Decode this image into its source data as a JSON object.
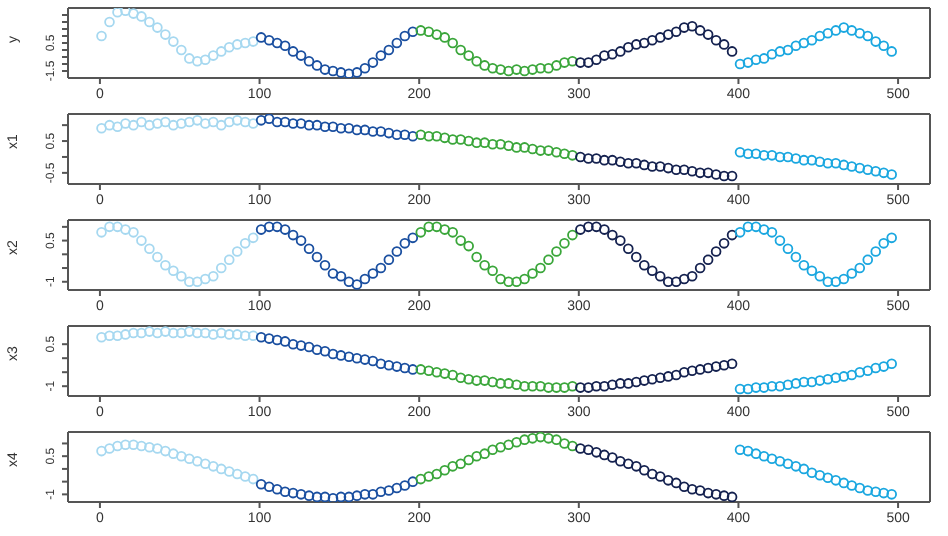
{
  "chart_data": [
    {
      "type": "scatter",
      "ylabel": "y",
      "xlim": [
        -20,
        520
      ],
      "xticks": [
        0,
        100,
        200,
        300,
        400,
        500
      ],
      "ylim": [
        -2.0,
        3.0
      ],
      "yticks": [
        -1.5,
        {
          "value": -1,
          "label": null
        },
        {
          "value": -0.5,
          "label": null
        },
        {
          "value": 0,
          "label": null
        },
        0.5,
        {
          "value": 1,
          "label": null
        },
        {
          "value": 1.5,
          "label": null
        },
        {
          "value": 2,
          "label": null
        },
        {
          "value": 2.5,
          "label": null
        }
      ],
      "marker": "circle",
      "grid": false,
      "series": [
        {
          "color": "#a6d8f0",
          "x": [
            1,
            6,
            11,
            16,
            21,
            26,
            31,
            36,
            41,
            46,
            51,
            56,
            61,
            66,
            71,
            76,
            81,
            86,
            91,
            96
          ],
          "values": [
            1.0,
            2.0,
            2.7,
            2.8,
            2.6,
            2.4,
            2.0,
            1.6,
            1.1,
            0.6,
            0.0,
            -0.6,
            -0.8,
            -0.7,
            -0.4,
            -0.1,
            0.2,
            0.4,
            0.5,
            0.6
          ]
        },
        {
          "color": "#1a4fa0",
          "x": [
            101,
            106,
            111,
            116,
            121,
            126,
            131,
            136,
            141,
            146,
            151,
            156,
            161,
            166,
            171,
            176,
            181,
            186,
            191,
            196
          ],
          "values": [
            0.9,
            0.7,
            0.5,
            0.3,
            -0.1,
            -0.4,
            -0.8,
            -1.1,
            -1.4,
            -1.5,
            -1.6,
            -1.7,
            -1.6,
            -1.3,
            -0.9,
            -0.4,
            0.0,
            0.5,
            1.0,
            1.3
          ]
        },
        {
          "color": "#3aa63a",
          "x": [
            201,
            206,
            211,
            216,
            221,
            226,
            231,
            236,
            241,
            246,
            251,
            256,
            261,
            266,
            271,
            276,
            281,
            286,
            291,
            296
          ],
          "values": [
            1.4,
            1.3,
            1.1,
            0.9,
            0.5,
            0.0,
            -0.4,
            -0.8,
            -1.1,
            -1.3,
            -1.4,
            -1.5,
            -1.4,
            -1.5,
            -1.4,
            -1.3,
            -1.3,
            -1.1,
            -0.9,
            -0.8
          ]
        },
        {
          "color": "#14214f",
          "x": [
            301,
            306,
            311,
            316,
            321,
            326,
            331,
            336,
            341,
            346,
            351,
            356,
            361,
            366,
            371,
            376,
            381,
            386,
            391,
            396
          ],
          "values": [
            -0.9,
            -0.9,
            -0.7,
            -0.4,
            -0.3,
            -0.1,
            0.2,
            0.4,
            0.5,
            0.7,
            0.9,
            1.1,
            1.3,
            1.6,
            1.7,
            1.4,
            1.1,
            0.7,
            0.4,
            -0.1
          ]
        },
        {
          "color": "#1aa7e0",
          "x": [
            401,
            406,
            411,
            416,
            421,
            426,
            431,
            436,
            441,
            446,
            451,
            456,
            461,
            466,
            471,
            476,
            481,
            486,
            491,
            496
          ],
          "values": [
            -1.0,
            -0.9,
            -0.7,
            -0.6,
            -0.3,
            -0.1,
            0.0,
            0.3,
            0.5,
            0.7,
            1.0,
            1.2,
            1.4,
            1.6,
            1.4,
            1.2,
            1.0,
            0.6,
            0.3,
            -0.1
          ]
        }
      ]
    },
    {
      "type": "scatter",
      "ylabel": "x1",
      "xlim": [
        -20,
        520
      ],
      "xticks": [
        0,
        100,
        200,
        300,
        400,
        500
      ],
      "ylim": [
        -0.85,
        1.35
      ],
      "yticks": [
        -0.5,
        {
          "value": 0,
          "label": null
        },
        0.5,
        {
          "value": 1,
          "label": null
        }
      ],
      "marker": "circle",
      "grid": false,
      "series": [
        {
          "color": "#a6d8f0",
          "x": [
            1,
            6,
            11,
            16,
            21,
            26,
            31,
            36,
            41,
            46,
            51,
            56,
            61,
            66,
            71,
            76,
            81,
            86,
            91,
            96
          ],
          "values": [
            0.9,
            1.0,
            0.95,
            1.05,
            1.0,
            1.1,
            1.0,
            1.05,
            1.1,
            1.0,
            1.05,
            1.1,
            1.15,
            1.05,
            1.1,
            1.0,
            1.1,
            1.15,
            1.1,
            1.05
          ]
        },
        {
          "color": "#1a4fa0",
          "x": [
            101,
            106,
            111,
            116,
            121,
            126,
            131,
            136,
            141,
            146,
            151,
            156,
            161,
            166,
            171,
            176,
            181,
            186,
            191,
            196
          ],
          "values": [
            1.15,
            1.2,
            1.1,
            1.1,
            1.05,
            1.05,
            1.0,
            1.0,
            0.95,
            0.95,
            0.9,
            0.9,
            0.85,
            0.85,
            0.8,
            0.8,
            0.75,
            0.7,
            0.7,
            0.65
          ]
        },
        {
          "color": "#3aa63a",
          "x": [
            201,
            206,
            211,
            216,
            221,
            226,
            231,
            236,
            241,
            246,
            251,
            256,
            261,
            266,
            271,
            276,
            281,
            286,
            291,
            296
          ],
          "values": [
            0.7,
            0.65,
            0.65,
            0.6,
            0.55,
            0.55,
            0.5,
            0.45,
            0.45,
            0.4,
            0.4,
            0.35,
            0.3,
            0.3,
            0.25,
            0.2,
            0.2,
            0.15,
            0.1,
            0.05
          ]
        },
        {
          "color": "#14214f",
          "x": [
            301,
            306,
            311,
            316,
            321,
            326,
            331,
            336,
            341,
            346,
            351,
            356,
            361,
            366,
            371,
            376,
            381,
            386,
            391,
            396
          ],
          "values": [
            0.0,
            -0.05,
            -0.05,
            -0.1,
            -0.1,
            -0.15,
            -0.2,
            -0.2,
            -0.25,
            -0.3,
            -0.3,
            -0.35,
            -0.4,
            -0.4,
            -0.45,
            -0.5,
            -0.5,
            -0.55,
            -0.6,
            -0.6
          ]
        },
        {
          "color": "#1aa7e0",
          "x": [
            401,
            406,
            411,
            416,
            421,
            426,
            431,
            436,
            441,
            446,
            451,
            456,
            461,
            466,
            471,
            476,
            481,
            486,
            491,
            496
          ],
          "values": [
            0.15,
            0.1,
            0.1,
            0.05,
            0.05,
            0.0,
            0.0,
            -0.05,
            -0.1,
            -0.1,
            -0.15,
            -0.2,
            -0.2,
            -0.25,
            -0.3,
            -0.35,
            -0.4,
            -0.45,
            -0.5,
            -0.55
          ]
        }
      ]
    },
    {
      "type": "scatter",
      "ylabel": "x2",
      "xlim": [
        -20,
        520
      ],
      "xticks": [
        0,
        100,
        200,
        300,
        400,
        500
      ],
      "ylim": [
        -1.3,
        1.25
      ],
      "yticks": [
        -1.0,
        {
          "value": -0.5,
          "label": null
        },
        {
          "value": 0,
          "label": null
        },
        0.5,
        {
          "value": 1,
          "label": null
        }
      ],
      "marker": "circle",
      "grid": false,
      "series": [
        {
          "color": "#a6d8f0",
          "x": [
            1,
            6,
            11,
            16,
            21,
            26,
            31,
            36,
            41,
            46,
            51,
            56,
            61,
            66,
            71,
            76,
            81,
            86,
            91,
            96
          ],
          "values": [
            0.8,
            1.0,
            1.0,
            0.9,
            0.8,
            0.5,
            0.2,
            -0.1,
            -0.4,
            -0.6,
            -0.8,
            -1.0,
            -1.0,
            -0.9,
            -0.8,
            -0.5,
            -0.2,
            0.1,
            0.4,
            0.6
          ]
        },
        {
          "color": "#1a4fa0",
          "x": [
            101,
            106,
            111,
            116,
            121,
            126,
            131,
            136,
            141,
            146,
            151,
            156,
            161,
            166,
            171,
            176,
            181,
            186,
            191,
            196
          ],
          "values": [
            0.9,
            1.0,
            1.0,
            0.9,
            0.7,
            0.5,
            0.2,
            -0.1,
            -0.4,
            -0.7,
            -0.8,
            -1.0,
            -1.1,
            -0.9,
            -0.7,
            -0.5,
            -0.2,
            0.1,
            0.4,
            0.6
          ]
        },
        {
          "color": "#3aa63a",
          "x": [
            201,
            206,
            211,
            216,
            221,
            226,
            231,
            236,
            241,
            246,
            251,
            256,
            261,
            266,
            271,
            276,
            281,
            286,
            291,
            296
          ],
          "values": [
            0.8,
            1.0,
            1.0,
            0.9,
            0.8,
            0.5,
            0.3,
            -0.1,
            -0.4,
            -0.6,
            -0.9,
            -1.0,
            -1.0,
            -0.9,
            -0.7,
            -0.5,
            -0.2,
            0.1,
            0.4,
            0.7
          ]
        },
        {
          "color": "#14214f",
          "x": [
            301,
            306,
            311,
            316,
            321,
            326,
            331,
            336,
            341,
            346,
            351,
            356,
            361,
            366,
            371,
            376,
            381,
            386,
            391,
            396
          ],
          "values": [
            0.9,
            1.0,
            1.0,
            0.9,
            0.7,
            0.5,
            0.2,
            -0.1,
            -0.4,
            -0.6,
            -0.8,
            -1.0,
            -1.0,
            -0.9,
            -0.8,
            -0.5,
            -0.2,
            0.1,
            0.4,
            0.7
          ]
        },
        {
          "color": "#1aa7e0",
          "x": [
            401,
            406,
            411,
            416,
            421,
            426,
            431,
            436,
            441,
            446,
            451,
            456,
            461,
            466,
            471,
            476,
            481,
            486,
            491,
            496
          ],
          "values": [
            0.8,
            1.0,
            1.0,
            0.9,
            0.8,
            0.5,
            0.2,
            -0.1,
            -0.4,
            -0.6,
            -0.8,
            -1.0,
            -1.0,
            -0.9,
            -0.7,
            -0.5,
            -0.2,
            0.1,
            0.4,
            0.6
          ]
        }
      ]
    },
    {
      "type": "scatter",
      "ylabel": "x3",
      "xlim": [
        -20,
        520
      ],
      "xticks": [
        0,
        100,
        200,
        300,
        400,
        500
      ],
      "ylim": [
        -1.35,
        1.15
      ],
      "yticks": [
        -1.0,
        {
          "value": -0.5,
          "label": null
        },
        {
          "value": 0,
          "label": null
        },
        0.5
      ],
      "marker": "circle",
      "grid": false,
      "series": [
        {
          "color": "#a6d8f0",
          "x": [
            1,
            6,
            11,
            16,
            21,
            26,
            31,
            36,
            41,
            46,
            51,
            56,
            61,
            66,
            71,
            76,
            81,
            86,
            91,
            96
          ],
          "values": [
            0.75,
            0.8,
            0.8,
            0.85,
            0.9,
            0.9,
            0.95,
            0.9,
            0.95,
            0.9,
            0.9,
            0.95,
            0.9,
            0.9,
            0.85,
            0.9,
            0.85,
            0.85,
            0.8,
            0.8
          ]
        },
        {
          "color": "#1a4fa0",
          "x": [
            101,
            106,
            111,
            116,
            121,
            126,
            131,
            136,
            141,
            146,
            151,
            156,
            161,
            166,
            171,
            176,
            181,
            186,
            191,
            196
          ],
          "values": [
            0.75,
            0.7,
            0.65,
            0.6,
            0.5,
            0.45,
            0.4,
            0.3,
            0.25,
            0.15,
            0.1,
            0.05,
            0.0,
            -0.05,
            -0.1,
            -0.2,
            -0.25,
            -0.3,
            -0.35,
            -0.4
          ]
        },
        {
          "color": "#3aa63a",
          "x": [
            201,
            206,
            211,
            216,
            221,
            226,
            231,
            236,
            241,
            246,
            251,
            256,
            261,
            266,
            271,
            276,
            281,
            286,
            291,
            296
          ],
          "values": [
            -0.4,
            -0.45,
            -0.5,
            -0.55,
            -0.6,
            -0.7,
            -0.75,
            -0.8,
            -0.8,
            -0.85,
            -0.9,
            -0.9,
            -0.95,
            -1.0,
            -1.0,
            -1.0,
            -1.05,
            -1.05,
            -1.05,
            -1.0
          ]
        },
        {
          "color": "#14214f",
          "x": [
            301,
            306,
            311,
            316,
            321,
            326,
            331,
            336,
            341,
            346,
            351,
            356,
            361,
            366,
            371,
            376,
            381,
            386,
            391,
            396
          ],
          "values": [
            -1.05,
            -1.05,
            -1.0,
            -1.0,
            -0.95,
            -0.9,
            -0.9,
            -0.85,
            -0.8,
            -0.75,
            -0.7,
            -0.65,
            -0.6,
            -0.5,
            -0.45,
            -0.4,
            -0.35,
            -0.3,
            -0.25,
            -0.2
          ]
        },
        {
          "color": "#1aa7e0",
          "x": [
            401,
            406,
            411,
            416,
            421,
            426,
            431,
            436,
            441,
            446,
            451,
            456,
            461,
            466,
            471,
            476,
            481,
            486,
            491,
            496
          ],
          "values": [
            -1.1,
            -1.1,
            -1.05,
            -1.05,
            -1.0,
            -1.0,
            -0.95,
            -0.9,
            -0.85,
            -0.85,
            -0.8,
            -0.75,
            -0.7,
            -0.65,
            -0.6,
            -0.5,
            -0.45,
            -0.35,
            -0.3,
            -0.2
          ]
        }
      ]
    },
    {
      "type": "scatter",
      "ylabel": "x4",
      "xlim": [
        -20,
        520
      ],
      "xticks": [
        0,
        100,
        200,
        300,
        400,
        500
      ],
      "ylim": [
        -1.3,
        1.45
      ],
      "yticks": [
        -1.0,
        {
          "value": -0.5,
          "label": null
        },
        {
          "value": 0,
          "label": null
        },
        0.5,
        {
          "value": 1,
          "label": null
        }
      ],
      "marker": "circle",
      "grid": false,
      "series": [
        {
          "color": "#a6d8f0",
          "x": [
            1,
            6,
            11,
            16,
            21,
            26,
            31,
            36,
            41,
            46,
            51,
            56,
            61,
            66,
            71,
            76,
            81,
            86,
            91,
            96
          ],
          "values": [
            0.7,
            0.8,
            0.9,
            0.95,
            0.95,
            0.9,
            0.85,
            0.8,
            0.7,
            0.6,
            0.5,
            0.4,
            0.3,
            0.2,
            0.1,
            0.0,
            -0.1,
            -0.2,
            -0.3,
            -0.4
          ]
        },
        {
          "color": "#1a4fa0",
          "x": [
            101,
            106,
            111,
            116,
            121,
            126,
            131,
            136,
            141,
            146,
            151,
            156,
            161,
            166,
            171,
            176,
            181,
            186,
            191,
            196
          ],
          "values": [
            -0.6,
            -0.7,
            -0.8,
            -0.9,
            -0.95,
            -1.0,
            -1.05,
            -1.1,
            -1.1,
            -1.15,
            -1.1,
            -1.1,
            -1.05,
            -1.0,
            -1.0,
            -0.9,
            -0.85,
            -0.75,
            -0.65,
            -0.5
          ]
        },
        {
          "color": "#3aa63a",
          "x": [
            201,
            206,
            211,
            216,
            221,
            226,
            231,
            236,
            241,
            246,
            251,
            256,
            261,
            266,
            271,
            276,
            281,
            286,
            291,
            296
          ],
          "values": [
            -0.4,
            -0.3,
            -0.2,
            -0.05,
            0.1,
            0.2,
            0.35,
            0.5,
            0.6,
            0.75,
            0.85,
            0.95,
            1.05,
            1.15,
            1.2,
            1.25,
            1.2,
            1.15,
            1.0,
            0.9
          ]
        },
        {
          "color": "#14214f",
          "x": [
            301,
            306,
            311,
            316,
            321,
            326,
            331,
            336,
            341,
            346,
            351,
            356,
            361,
            366,
            371,
            376,
            381,
            386,
            391,
            396
          ],
          "values": [
            0.8,
            0.75,
            0.65,
            0.55,
            0.45,
            0.3,
            0.2,
            0.1,
            -0.05,
            -0.2,
            -0.3,
            -0.45,
            -0.55,
            -0.7,
            -0.8,
            -0.85,
            -0.95,
            -1.0,
            -1.05,
            -1.1
          ]
        },
        {
          "color": "#1aa7e0",
          "x": [
            401,
            406,
            411,
            416,
            421,
            426,
            431,
            436,
            441,
            446,
            451,
            456,
            461,
            466,
            471,
            476,
            481,
            486,
            491,
            496
          ],
          "values": [
            0.75,
            0.7,
            0.6,
            0.5,
            0.4,
            0.3,
            0.2,
            0.1,
            0.0,
            -0.15,
            -0.25,
            -0.35,
            -0.45,
            -0.55,
            -0.65,
            -0.75,
            -0.85,
            -0.9,
            -0.95,
            -1.0
          ]
        }
      ]
    }
  ]
}
